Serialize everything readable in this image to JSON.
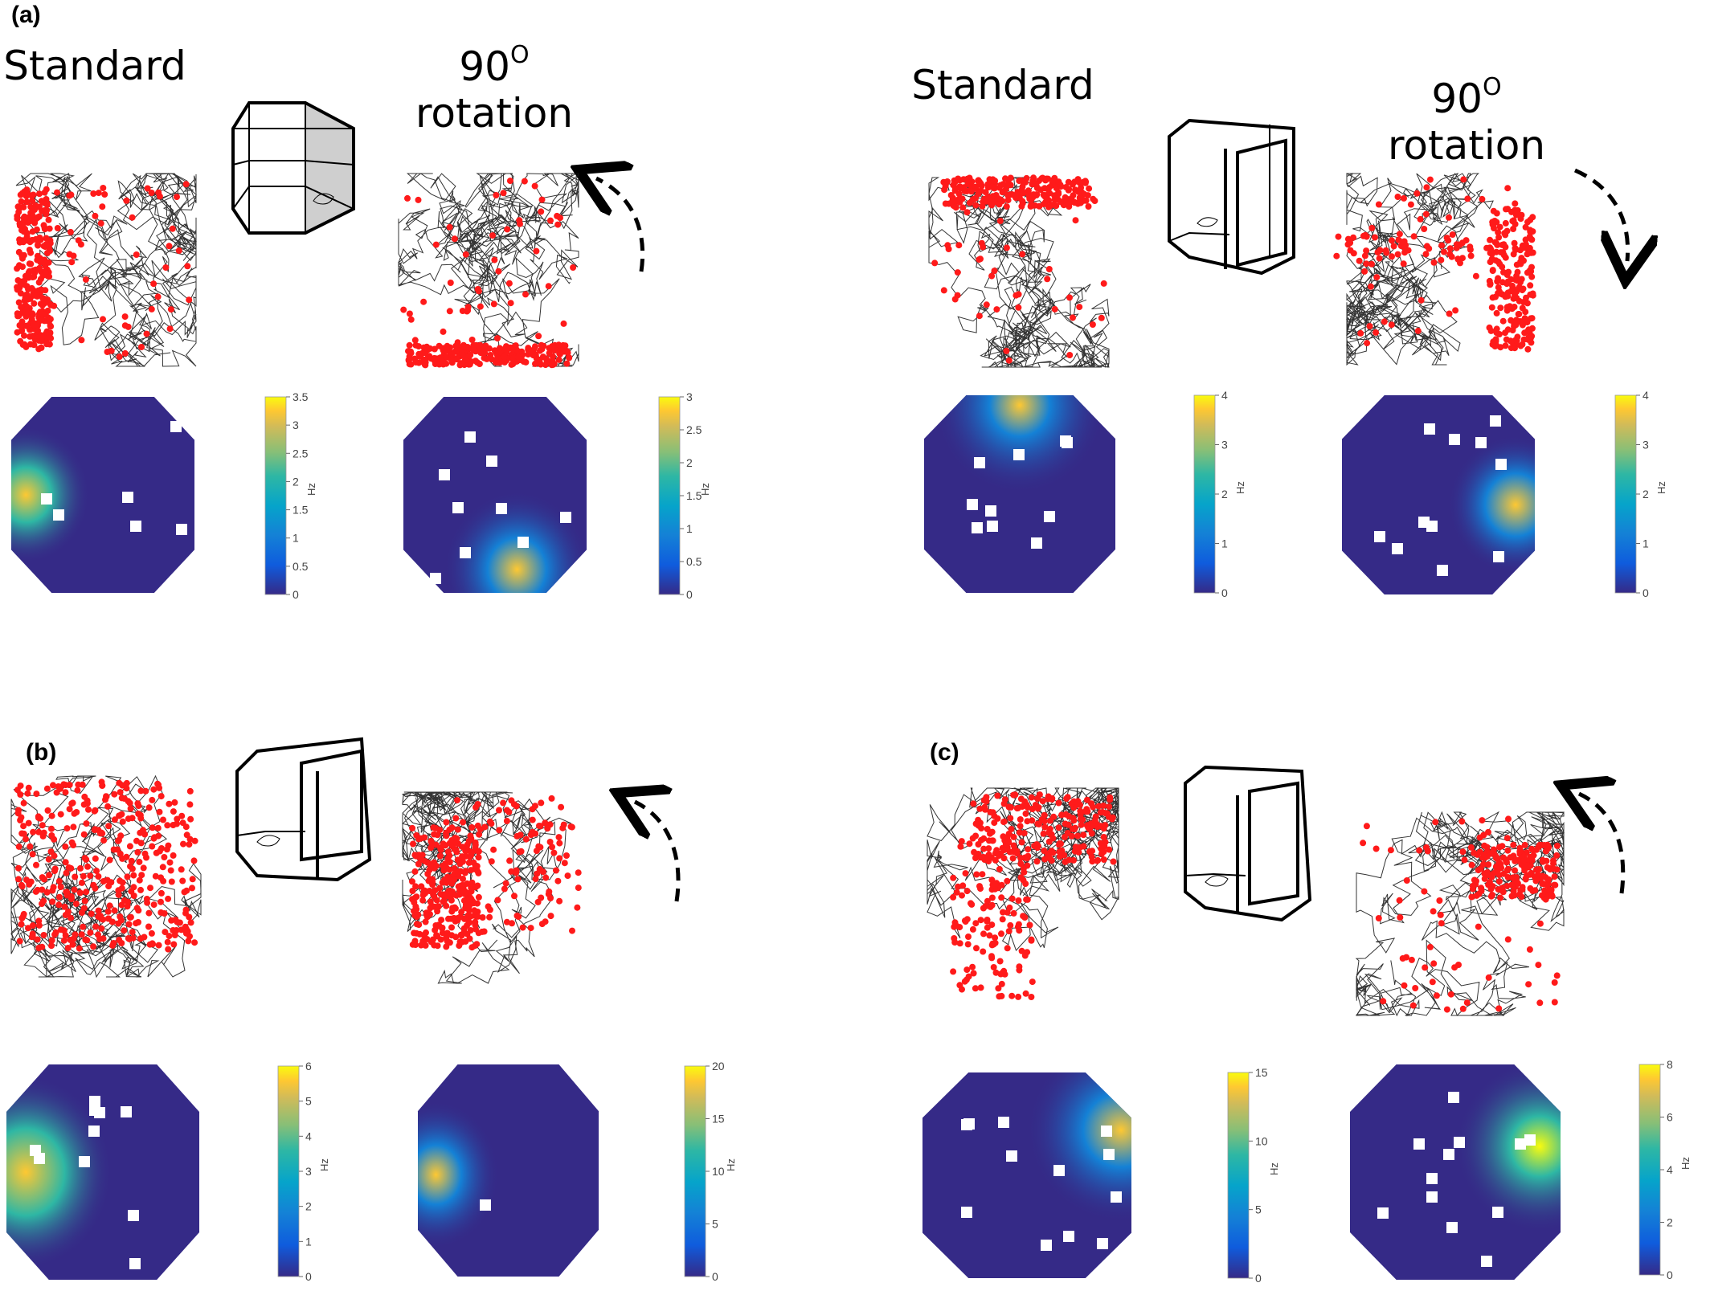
{
  "panels": {
    "a": {
      "label": "(a)"
    },
    "b": {
      "label": "(b)"
    },
    "c": {
      "label": "(c)"
    }
  },
  "titles": {
    "standard": "Standard",
    "rotation_deg": "90",
    "rotation_sup": "O",
    "rotation_word": "rotation"
  },
  "colorbar_unit": "Hz",
  "colorbars": [
    {
      "id": "a-left-std",
      "ticks": [
        "3.5",
        "3",
        "2.5",
        "2",
        "1.5",
        "1",
        "0.5",
        "0"
      ]
    },
    {
      "id": "a-left-rot",
      "ticks": [
        "3",
        "2.5",
        "2",
        "1.5",
        "1",
        "0.5",
        "0"
      ]
    },
    {
      "id": "a-right-std",
      "ticks": [
        "4",
        "3",
        "2",
        "1",
        "0"
      ]
    },
    {
      "id": "a-right-rot",
      "ticks": [
        "4",
        "3",
        "2",
        "1",
        "0"
      ]
    },
    {
      "id": "b-std",
      "ticks": [
        "6",
        "5",
        "4",
        "3",
        "2",
        "1",
        "0"
      ]
    },
    {
      "id": "b-rot",
      "ticks": [
        "20",
        "15",
        "10",
        "5",
        "0"
      ]
    },
    {
      "id": "c-std",
      "ticks": [
        "15",
        "10",
        "5",
        "0"
      ]
    },
    {
      "id": "c-rot",
      "ticks": [
        "8",
        "6",
        "4",
        "2",
        "0"
      ]
    }
  ],
  "colormap": [
    "#352a87",
    "#0f5cdd",
    "#1481d6",
    "#06a4ca",
    "#2eb7a4",
    "#87bf77",
    "#d1bb59",
    "#fec832",
    "#f9fb0e"
  ],
  "colors": {
    "trajectory": "#111111",
    "spikes": "#ff1a1a"
  },
  "arrows": {
    "a-left": "counterclockwise",
    "a-right": "clockwise",
    "b": "counterclockwise",
    "c": "counterclockwise"
  }
}
